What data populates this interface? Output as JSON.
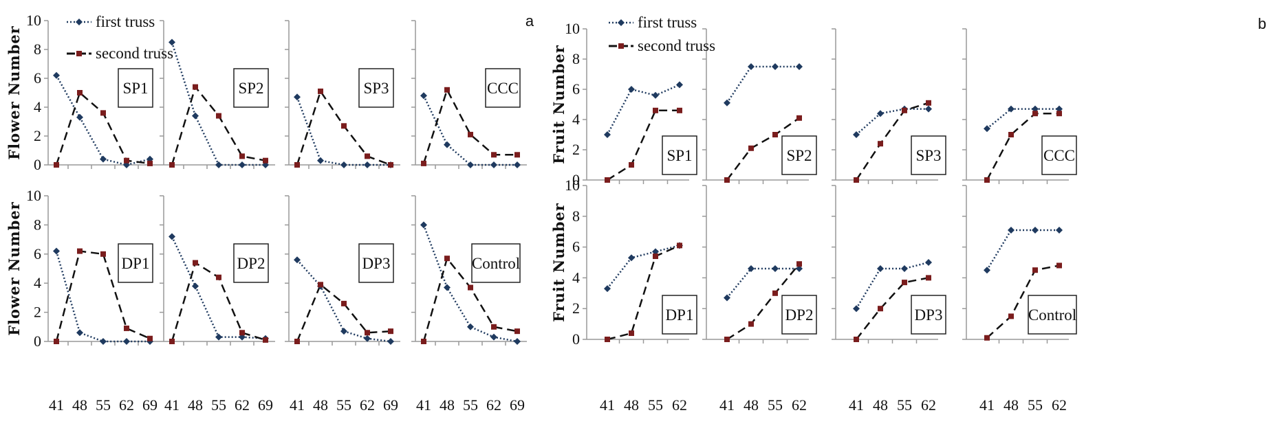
{
  "legend": {
    "first": "first truss",
    "second": "second truss"
  },
  "colors": {
    "first": "#1f3a5f",
    "second": "#7a1d1d",
    "axis": "#999999"
  },
  "chart_data": [
    {
      "type": "line",
      "panel": "a",
      "ylabel": "Flower Number",
      "ylim": [
        0,
        10
      ],
      "yticks": [
        "0",
        "2",
        "4",
        "6",
        "8",
        "10"
      ],
      "x": [
        "41",
        "48",
        "55",
        "62",
        "69"
      ],
      "legend": [
        "first truss",
        "second truss"
      ],
      "subplots": [
        {
          "label": "SP1",
          "first": [
            6.2,
            3.3,
            0.4,
            0.0,
            0.4
          ],
          "second": [
            0.0,
            5.0,
            3.6,
            0.3,
            0.1
          ]
        },
        {
          "label": "SP2",
          "first": [
            8.5,
            3.4,
            0.0,
            0.0,
            0.0
          ],
          "second": [
            0.0,
            5.4,
            3.4,
            0.6,
            0.3
          ]
        },
        {
          "label": "SP3",
          "first": [
            4.7,
            0.3,
            0.0,
            0.0,
            0.0
          ],
          "second": [
            0.0,
            5.1,
            2.7,
            0.6,
            0.0
          ]
        },
        {
          "label": "CCC",
          "first": [
            4.8,
            1.4,
            0.0,
            0.0,
            0.0
          ],
          "second": [
            0.1,
            5.2,
            2.1,
            0.7,
            0.7
          ]
        },
        {
          "label": "DP1",
          "first": [
            6.2,
            0.6,
            0.0,
            0.0,
            0.0
          ],
          "second": [
            0.0,
            6.2,
            6.0,
            0.9,
            0.2
          ]
        },
        {
          "label": "DP2",
          "first": [
            7.2,
            3.8,
            0.3,
            0.3,
            0.2
          ],
          "second": [
            0.0,
            5.4,
            4.4,
            0.6,
            0.1
          ]
        },
        {
          "label": "DP3",
          "first": [
            5.6,
            3.8,
            0.7,
            0.2,
            0.0
          ],
          "second": [
            0.0,
            3.9,
            2.6,
            0.6,
            0.7
          ]
        },
        {
          "label": "Control",
          "first": [
            8.0,
            3.7,
            1.0,
            0.3,
            0.0
          ],
          "second": [
            0.0,
            5.7,
            3.7,
            1.0,
            0.7
          ]
        }
      ]
    },
    {
      "type": "line",
      "panel": "b",
      "ylabel": "Fruit Number",
      "ylim": [
        0,
        10
      ],
      "yticks": [
        "0",
        "2",
        "4",
        "6",
        "8",
        "10"
      ],
      "x": [
        "41",
        "48",
        "55",
        "62"
      ],
      "legend": [
        "first truss",
        "second truss"
      ],
      "subplots": [
        {
          "label": "SP1",
          "first": [
            3.0,
            6.0,
            5.6,
            6.3
          ],
          "second": [
            0.0,
            1.0,
            4.6,
            4.6
          ]
        },
        {
          "label": "SP2",
          "first": [
            5.1,
            7.5,
            7.5,
            7.5
          ],
          "second": [
            0.0,
            2.1,
            3.0,
            4.1
          ]
        },
        {
          "label": "SP3",
          "first": [
            3.0,
            4.4,
            4.7,
            4.7
          ],
          "second": [
            0.0,
            2.4,
            4.6,
            5.1
          ]
        },
        {
          "label": "CCC",
          "first": [
            3.4,
            4.7,
            4.7,
            4.7
          ],
          "second": [
            0.0,
            3.0,
            4.4,
            4.4
          ]
        },
        {
          "label": "DP1",
          "first": [
            3.3,
            5.3,
            5.7,
            6.1
          ],
          "second": [
            0.0,
            0.4,
            5.4,
            6.1
          ]
        },
        {
          "label": "DP2",
          "first": [
            2.7,
            4.6,
            4.6,
            4.6
          ],
          "second": [
            0.0,
            1.0,
            3.0,
            4.9
          ]
        },
        {
          "label": "DP3",
          "first": [
            2.0,
            4.6,
            4.6,
            5.0
          ],
          "second": [
            0.0,
            2.0,
            3.7,
            4.0
          ]
        },
        {
          "label": "Control",
          "first": [
            4.5,
            7.1,
            7.1,
            7.1
          ],
          "second": [
            0.1,
            1.5,
            4.5,
            4.8
          ]
        }
      ]
    }
  ]
}
